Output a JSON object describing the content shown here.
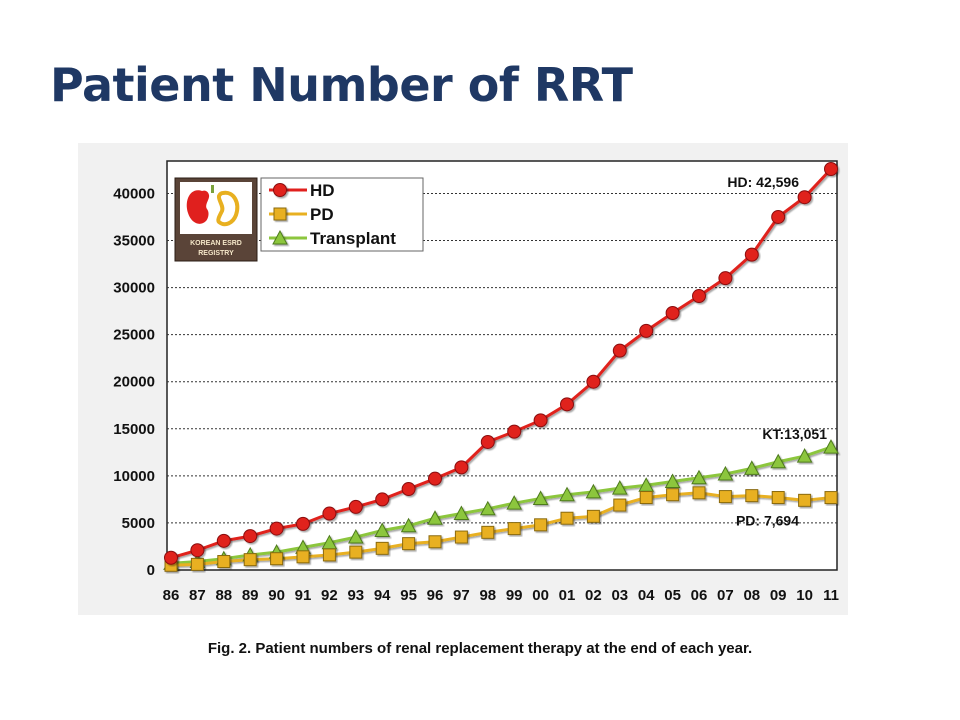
{
  "slide": {
    "title": "Patient Number of RRT",
    "caption": "Fig. 2. Patient numbers of renal replacement therapy at the end of each year."
  },
  "logo": {
    "line1": "KOREAN ESRD",
    "line2": "REGISTRY"
  },
  "colors": {
    "title": "#1f3864",
    "hd": "#e0201e",
    "pd": "#e8b020",
    "transplant": "#8cc63e"
  },
  "chart_data": {
    "type": "line",
    "categories": [
      "86",
      "87",
      "88",
      "89",
      "90",
      "91",
      "92",
      "93",
      "94",
      "95",
      "96",
      "97",
      "98",
      "99",
      "00",
      "01",
      "02",
      "03",
      "04",
      "05",
      "06",
      "07",
      "08",
      "09",
      "10",
      "11"
    ],
    "ylim": [
      0,
      42596
    ],
    "yticks": [
      0,
      5000,
      10000,
      15000,
      20000,
      25000,
      30000,
      35000,
      40000
    ],
    "grid": true,
    "legend_position": "top-left",
    "series": [
      {
        "name": "HD",
        "marker": "circle",
        "values": [
          1300,
          2100,
          3100,
          3600,
          4400,
          4900,
          6000,
          6700,
          7500,
          8600,
          9700,
          10900,
          13600,
          14700,
          15900,
          17600,
          20000,
          23300,
          25400,
          27300,
          29100,
          31000,
          33500,
          37500,
          39600,
          42596
        ]
      },
      {
        "name": "PD",
        "marker": "square",
        "values": [
          500,
          600,
          900,
          1100,
          1200,
          1400,
          1600,
          1900,
          2300,
          2800,
          3000,
          3500,
          4000,
          4400,
          4800,
          5500,
          5700,
          6900,
          7700,
          8000,
          8200,
          7800,
          7900,
          7700,
          7400,
          7694
        ]
      },
      {
        "name": "Transplant",
        "marker": "triangle",
        "values": [
          700,
          900,
          1200,
          1600,
          1900,
          2400,
          2900,
          3500,
          4200,
          4700,
          5500,
          6000,
          6500,
          7100,
          7600,
          8000,
          8300,
          8700,
          9000,
          9400,
          9800,
          10200,
          10800,
          11500,
          12100,
          13051
        ]
      }
    ],
    "annotations": [
      {
        "text": "HD: 42,596",
        "series": "HD"
      },
      {
        "text": "KT:13,051",
        "series": "Transplant"
      },
      {
        "text": "PD: 7,694",
        "series": "PD"
      }
    ]
  }
}
